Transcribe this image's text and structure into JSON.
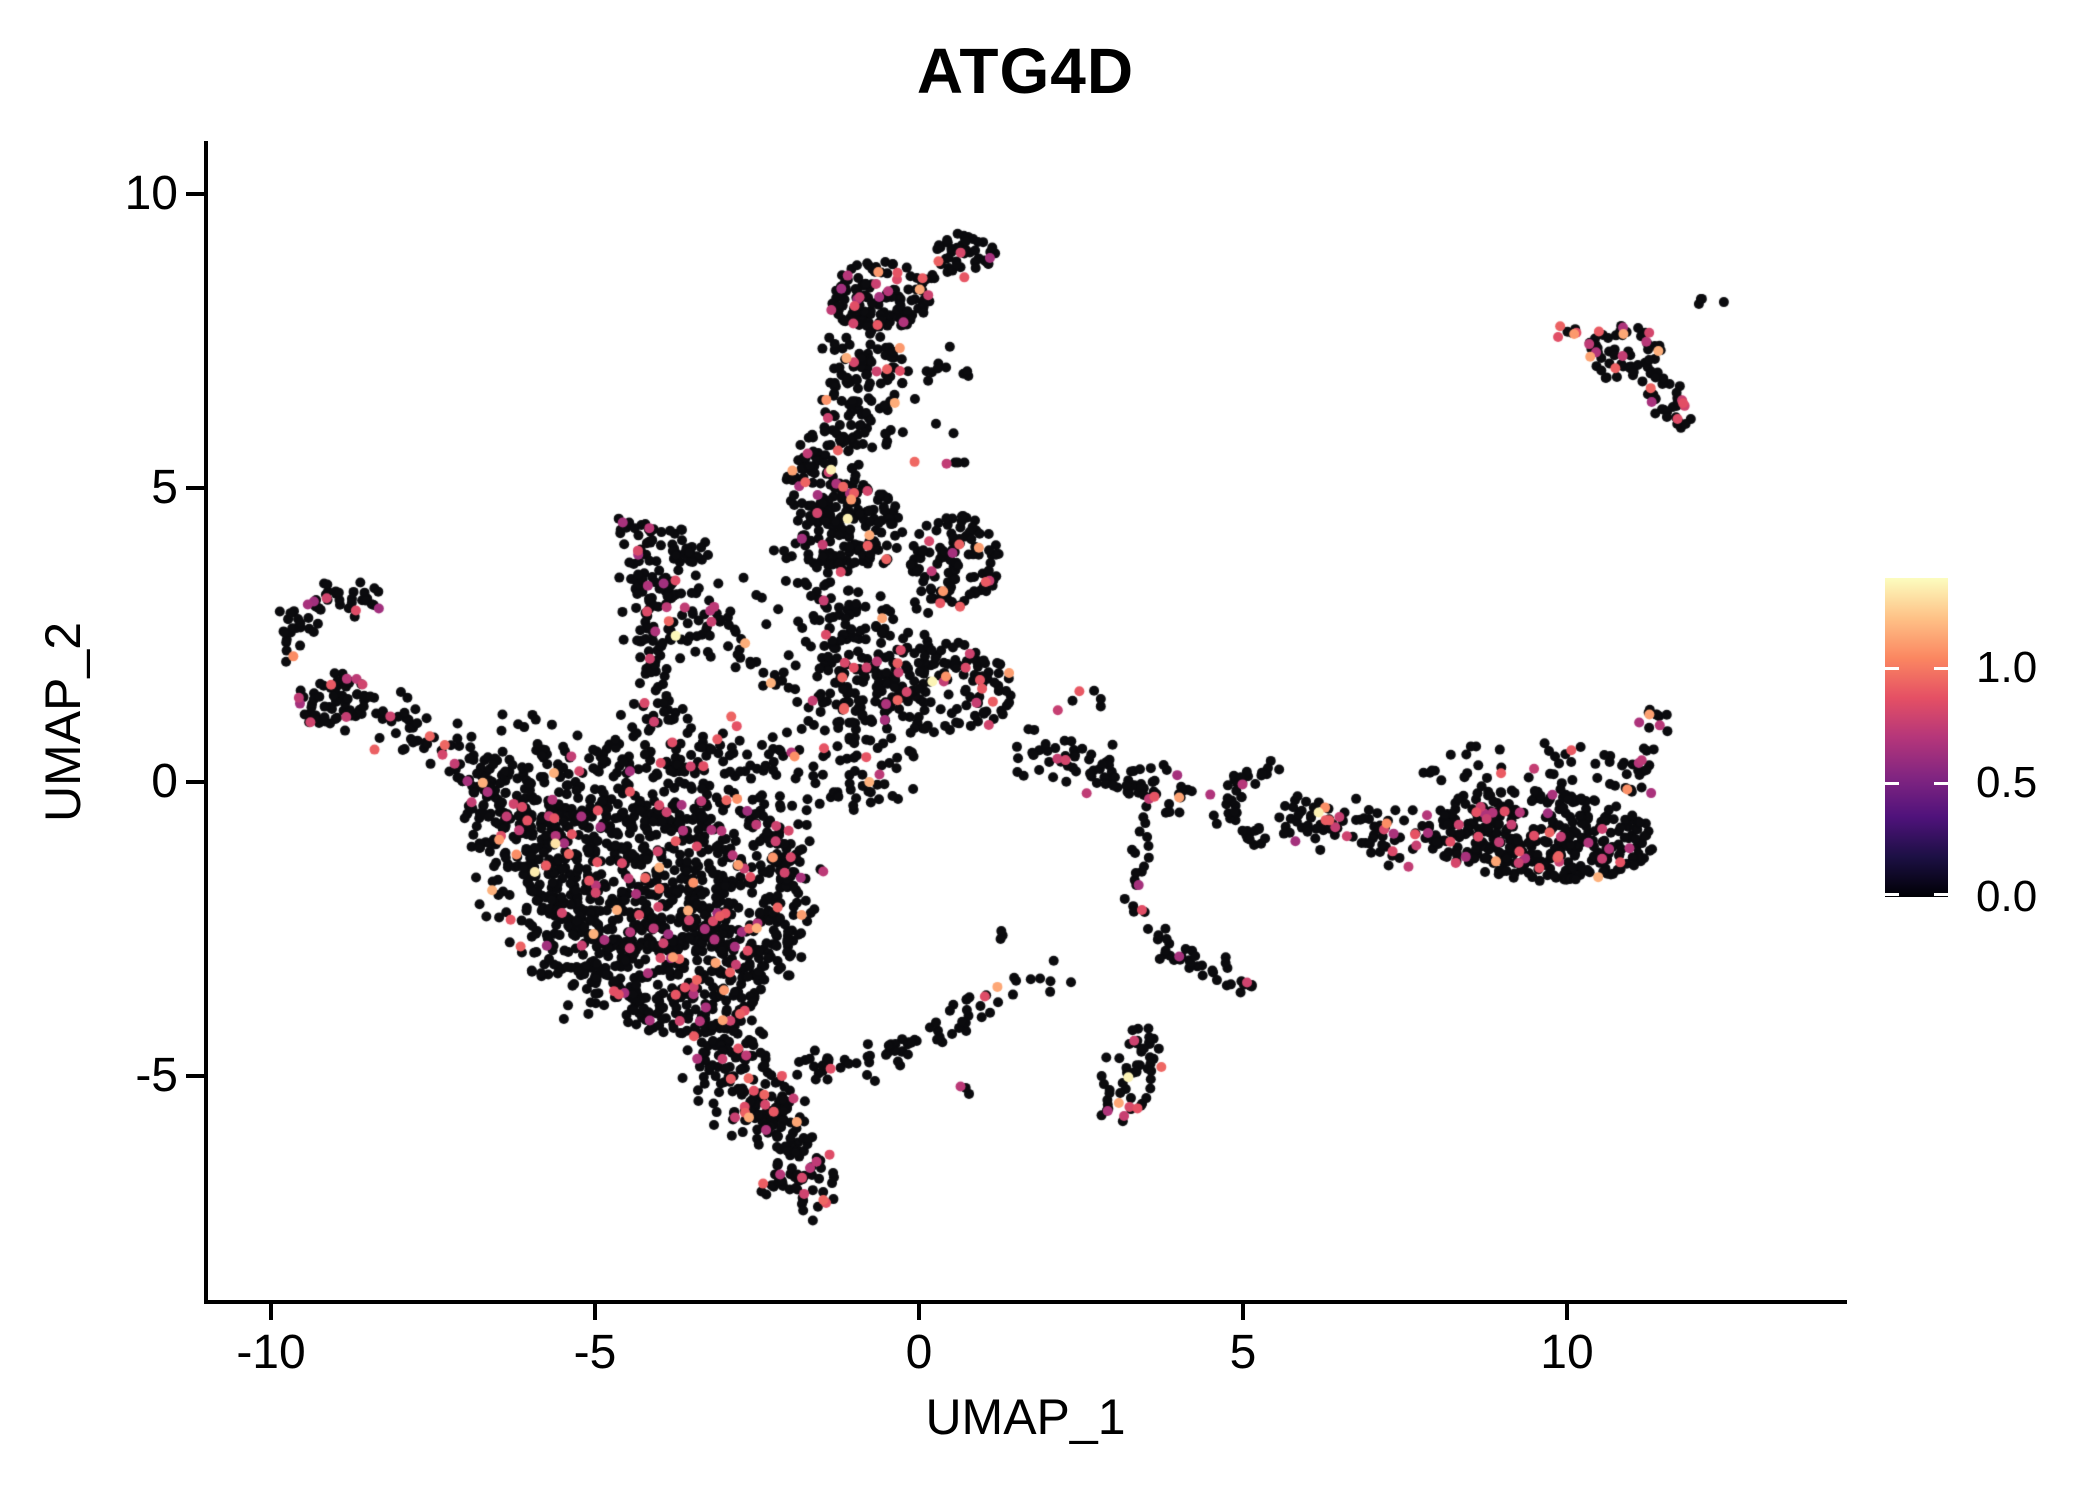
{
  "title": "ATG4D",
  "axes": {
    "x": {
      "label": "UMAP_1",
      "tick_labels": [
        "-10",
        "-5",
        "0",
        "5",
        "10"
      ],
      "tick_values": [
        -10,
        -5,
        0,
        5,
        10
      ]
    },
    "y": {
      "label": "UMAP_2",
      "tick_labels": [
        "10",
        "5",
        "0",
        "-5"
      ],
      "tick_values": [
        10,
        5,
        0,
        -5
      ]
    }
  },
  "legend": {
    "labels": [
      "1.0",
      "0.5",
      "0.0"
    ],
    "tick_values": [
      1.0,
      0.5,
      0.0
    ],
    "max_value": 1.39,
    "colormap": "magma",
    "stops": [
      "#000004",
      "#1c1044",
      "#4f127b",
      "#812581",
      "#b5367a",
      "#e55064",
      "#fb8761",
      "#fec287",
      "#fcfdbf"
    ]
  },
  "chart_data": {
    "type": "scatter",
    "title": "ATG4D",
    "xlabel": "UMAP_1",
    "ylabel": "UMAP_2",
    "xlim": [
      -11.0,
      14.3
    ],
    "ylim": [
      -8.8,
      10.9
    ],
    "x_ticks": [
      -10,
      -5,
      0,
      5,
      10
    ],
    "y_ticks": [
      -5,
      0,
      5,
      10
    ],
    "grid": false,
    "legend_position": "right",
    "n_points": 4245,
    "point_radius_px": 5,
    "data_x_range": [
      -10.6,
      12.4
    ],
    "data_y_range": [
      -7.45,
      9.4
    ],
    "color_scale": {
      "variable": "ATG4D expression",
      "range": [
        0.0,
        1.39
      ],
      "palette": "magma",
      "zero_fraction": 0.91,
      "point_color_groups": {
        "black_zero": "#0b0b0e",
        "magenta_mid": "#b5367a",
        "orange_high": "#fb9a62",
        "cream_max": "#fcf0b2"
      }
    },
    "clusters": [
      {
        "name": "stalk-head-top",
        "t": "e",
        "c": [
          0.72,
          8.95
        ],
        "r": [
          0.5,
          0.38
        ],
        "rot": -20,
        "n": 48,
        "cf": 0.1
      },
      {
        "name": "stalk-head-connector",
        "t": "p",
        "pts": [
          [
            0.0,
            8.55
          ],
          [
            0.38,
            8.75
          ]
        ],
        "w": 0.2,
        "n": 6,
        "cf": 0.05
      },
      {
        "name": "stalk-head",
        "t": "e",
        "c": [
          -0.62,
          8.25
        ],
        "r": [
          0.8,
          0.6
        ],
        "rot": 0,
        "n": 135,
        "cf": 0.09
      },
      {
        "name": "stalk-neck",
        "t": "p",
        "pts": [
          [
            -0.8,
            7.7
          ],
          [
            -0.95,
            6.6
          ],
          [
            -1.2,
            5.7
          ]
        ],
        "w": 0.6,
        "n": 105,
        "cf": 0.08
      },
      {
        "name": "stalk-left-bulge",
        "t": "e",
        "c": [
          -1.5,
          5.2
        ],
        "r": [
          0.55,
          0.85
        ],
        "rot": 0,
        "n": 80,
        "cf": 0.1
      },
      {
        "name": "stalk-mid",
        "t": "e",
        "c": [
          -1.1,
          4.3
        ],
        "r": [
          0.85,
          0.8
        ],
        "rot": 0,
        "n": 150,
        "cf": 0.08
      },
      {
        "name": "stalk-lower",
        "t": "p",
        "pts": [
          [
            -1.35,
            3.3
          ],
          [
            -1.1,
            2.1
          ],
          [
            -0.95,
            1.1
          ]
        ],
        "w": 0.8,
        "n": 150,
        "cf": 0.07
      },
      {
        "name": "stalk-right-sparse",
        "t": "e",
        "c": [
          -0.25,
          6.4
        ],
        "r": [
          0.55,
          1.1
        ],
        "rot": 0,
        "n": 22,
        "cf": 0.08
      },
      {
        "name": "above-b-sparse",
        "t": "e",
        "c": [
          0.45,
          6.6
        ],
        "r": [
          0.35,
          0.9
        ],
        "rot": 0,
        "n": 10,
        "cf": 0.1
      },
      {
        "name": "tiny-pair",
        "t": "e",
        "c": [
          0.55,
          5.42
        ],
        "r": [
          0.18,
          0.1
        ],
        "rot": 0,
        "n": 4,
        "cf": 0.3
      },
      {
        "name": "cluster-b",
        "t": "e",
        "c": [
          0.55,
          3.75
        ],
        "r": [
          0.7,
          0.8
        ],
        "rot": 0,
        "n": 115,
        "cf": 0.1
      },
      {
        "name": "cluster-c",
        "t": "e",
        "c": [
          0.4,
          1.6
        ],
        "r": [
          1.1,
          0.8
        ],
        "rot": -10,
        "n": 150,
        "cf": 0.12
      },
      {
        "name": "junction-scatter",
        "t": "e",
        "c": [
          -1.05,
          0.55
        ],
        "r": [
          1.25,
          1.05
        ],
        "rot": 0,
        "n": 85,
        "cf": 0.07
      },
      {
        "name": "gap-c-b",
        "t": "e",
        "c": [
          -0.15,
          2.7
        ],
        "r": [
          0.5,
          0.4
        ],
        "rot": 0,
        "n": 10,
        "cf": 0.08
      },
      {
        "name": "wing-top",
        "t": "p",
        "pts": [
          [
            -4.55,
            4.4
          ],
          [
            -3.35,
            3.7
          ]
        ],
        "w": 0.32,
        "n": 45,
        "cf": 0.08
      },
      {
        "name": "wing-hypotenuse",
        "t": "p",
        "pts": [
          [
            -4.35,
            4.0
          ],
          [
            -3.5,
            3.0
          ],
          [
            -2.7,
            2.25
          ]
        ],
        "w": 0.5,
        "n": 65,
        "cf": 0.08
      },
      {
        "name": "wing-left-edge",
        "t": "p",
        "pts": [
          [
            -4.4,
            3.6
          ],
          [
            -4.05,
            2.2
          ],
          [
            -3.95,
            1.0
          ]
        ],
        "w": 0.4,
        "n": 60,
        "cf": 0.08
      },
      {
        "name": "wing-interior",
        "t": "e",
        "c": [
          -3.7,
          2.8
        ],
        "r": [
          0.7,
          0.8
        ],
        "rot": 0,
        "n": 35,
        "cf": 0.06
      },
      {
        "name": "wing-stalk-connector",
        "t": "p",
        "pts": [
          [
            -2.6,
            2.1
          ],
          [
            -2.0,
            1.5
          ]
        ],
        "w": 0.3,
        "n": 12,
        "cf": 0.08
      },
      {
        "name": "wing-gap-sparse",
        "t": "e",
        "c": [
          -2.3,
          3.6
        ],
        "r": [
          0.45,
          0.5
        ],
        "rot": 0,
        "n": 8,
        "cf": 0.1
      },
      {
        "name": "arm-hook",
        "t": "p",
        "pts": [
          [
            -8.35,
            3.1
          ],
          [
            -9.15,
            3.2
          ],
          [
            -9.6,
            2.7
          ],
          [
            -9.75,
            2.1
          ]
        ],
        "w": 0.3,
        "n": 55,
        "cf": 0.09
      },
      {
        "name": "arm-elbow",
        "t": "e",
        "c": [
          -9.0,
          1.35
        ],
        "r": [
          0.6,
          0.5
        ],
        "rot": 0,
        "n": 70,
        "cf": 0.1
      },
      {
        "name": "arm",
        "t": "p",
        "pts": [
          [
            -8.4,
            1.15
          ],
          [
            -7.2,
            0.5
          ],
          [
            -6.2,
            -0.3
          ],
          [
            -5.5,
            -0.9
          ]
        ],
        "w": 0.48,
        "n": 115,
        "cf": 0.08
      },
      {
        "name": "arm-above-sparse",
        "t": "e",
        "c": [
          -6.3,
          1.0
        ],
        "r": [
          0.5,
          0.25
        ],
        "rot": 0,
        "n": 6,
        "cf": 0.1
      },
      {
        "name": "blob-top-band",
        "t": "p",
        "pts": [
          [
            -6.7,
            -0.4
          ],
          [
            -5.2,
            0.15
          ],
          [
            -3.4,
            0.3
          ],
          [
            -2.3,
            -0.1
          ]
        ],
        "w": 0.85,
        "n": 270,
        "cf": 0.07
      },
      {
        "name": "blob-core",
        "t": "e",
        "c": [
          -4.35,
          -1.6
        ],
        "r": [
          1.7,
          1.35
        ],
        "rot": 0,
        "n": 500,
        "cf": 0.085
      },
      {
        "name": "blob-left-edge",
        "t": "p",
        "pts": [
          [
            -6.55,
            -0.6
          ],
          [
            -5.8,
            -2.1
          ],
          [
            -4.95,
            -3.5
          ]
        ],
        "w": 0.75,
        "n": 190,
        "cf": 0.08
      },
      {
        "name": "blob-lower",
        "t": "e",
        "c": [
          -3.6,
          -3.3
        ],
        "r": [
          1.25,
          1.05
        ],
        "rot": 0,
        "n": 290,
        "cf": 0.085
      },
      {
        "name": "blob-tip",
        "t": "p",
        "pts": [
          [
            -3.2,
            -4.3
          ],
          [
            -2.7,
            -5.1
          ],
          [
            -2.35,
            -5.7
          ]
        ],
        "w": 0.7,
        "n": 130,
        "cf": 0.09
      },
      {
        "name": "blob-right-edge",
        "t": "p",
        "pts": [
          [
            -2.35,
            -0.6
          ],
          [
            -2.05,
            -2.0
          ],
          [
            -2.4,
            -3.1
          ]
        ],
        "w": 0.6,
        "n": 170,
        "cf": 0.08
      },
      {
        "name": "blob-halo",
        "t": "e",
        "c": [
          -4.3,
          -1.8
        ],
        "r": [
          2.5,
          2.3
        ],
        "rot": 0,
        "n": 70,
        "cf": 0.06
      },
      {
        "name": "tail",
        "t": "p",
        "pts": [
          [
            -2.25,
            -5.5
          ],
          [
            -1.95,
            -6.4
          ],
          [
            -1.8,
            -7.25
          ]
        ],
        "w": 0.52,
        "n": 105,
        "cf": 0.12
      },
      {
        "name": "tail-offshoot",
        "t": "p",
        "pts": [
          [
            -1.7,
            -4.6
          ],
          [
            -1.15,
            -5.0
          ]
        ],
        "w": 0.28,
        "n": 18,
        "cf": 0.1
      },
      {
        "name": "bottom-chain",
        "t": "p",
        "pts": [
          [
            -0.95,
            -4.85
          ],
          [
            0.15,
            -4.3
          ],
          [
            1.3,
            -3.6
          ],
          [
            2.25,
            -3.3
          ]
        ],
        "w": 0.3,
        "n": 60,
        "cf": 0.08
      },
      {
        "name": "bottom-pair",
        "t": "e",
        "c": [
          0.72,
          -5.2
        ],
        "r": [
          0.22,
          0.12
        ],
        "rot": 0,
        "n": 3,
        "cf": 0.34
      },
      {
        "name": "right-vchain",
        "t": "p",
        "pts": [
          [
            3.45,
            -0.7
          ],
          [
            3.3,
            -1.9
          ],
          [
            3.85,
            -2.85
          ],
          [
            4.85,
            -3.3
          ]
        ],
        "w": 0.28,
        "n": 50,
        "cf": 0.1
      },
      {
        "name": "vchain-clump",
        "t": "e",
        "c": [
          4.95,
          -3.42
        ],
        "r": [
          0.2,
          0.16
        ],
        "rot": 0,
        "n": 8,
        "cf": 0.28
      },
      {
        "name": "south-island",
        "t": "e",
        "c": [
          3.25,
          -4.95
        ],
        "r": [
          0.45,
          0.9
        ],
        "rot": -20,
        "n": 55,
        "cf": 0.14
      },
      {
        "name": "band-left-chain",
        "t": "p",
        "pts": [
          [
            1.6,
            0.55
          ],
          [
            2.6,
            0.3
          ],
          [
            3.5,
            -0.1
          ],
          [
            4.3,
            -0.4
          ]
        ],
        "w": 0.42,
        "n": 90,
        "cf": 0.11
      },
      {
        "name": "band-ring",
        "t": "r",
        "c": [
          5.3,
          -0.4
        ],
        "rad": 0.55,
        "w": 0.22,
        "n": 55,
        "cf": 0.08
      },
      {
        "name": "band-mid",
        "t": "p",
        "pts": [
          [
            5.9,
            -0.55
          ],
          [
            6.9,
            -0.85
          ],
          [
            7.7,
            -1.0
          ]
        ],
        "w": 0.45,
        "n": 75,
        "cf": 0.1
      },
      {
        "name": "band-dense",
        "t": "e",
        "c": [
          9.55,
          -0.9
        ],
        "r": [
          1.8,
          0.78
        ],
        "rot": -4,
        "n": 380,
        "cf": 0.11
      },
      {
        "name": "band-arm-up",
        "t": "p",
        "pts": [
          [
            10.95,
            -0.25
          ],
          [
            11.15,
            0.55
          ],
          [
            11.3,
            1.3
          ]
        ],
        "w": 0.3,
        "n": 32,
        "cf": 0.18
      },
      {
        "name": "band-top-scatter",
        "t": "e",
        "c": [
          9.3,
          0.25
        ],
        "r": [
          1.7,
          0.45
        ],
        "rot": 0,
        "n": 38,
        "cf": 0.1
      },
      {
        "name": "band-left-pair",
        "t": "e",
        "c": [
          1.4,
          -2.6
        ],
        "r": [
          0.25,
          0.12
        ],
        "rot": 0,
        "n": 3,
        "cf": 0.0
      },
      {
        "name": "mid-right-sparse",
        "t": "e",
        "c": [
          2.6,
          1.5
        ],
        "r": [
          0.8,
          0.35
        ],
        "rot": 0,
        "n": 6,
        "cf": 0.1
      },
      {
        "name": "ne-island",
        "t": "e",
        "c": [
          10.85,
          7.3
        ],
        "r": [
          0.6,
          0.5
        ],
        "rot": 0,
        "n": 55,
        "cf": 0.18
      },
      {
        "name": "ne-island-arm",
        "t": "p",
        "pts": [
          [
            11.0,
            7.05
          ],
          [
            11.55,
            6.5
          ],
          [
            11.9,
            6.1
          ]
        ],
        "w": 0.3,
        "n": 40,
        "cf": 0.22
      },
      {
        "name": "ne-island-left-chain",
        "t": "p",
        "pts": [
          [
            9.75,
            7.75
          ],
          [
            10.3,
            7.6
          ]
        ],
        "w": 0.14,
        "n": 7,
        "cf": 0.15
      },
      {
        "name": "ne-island-pair",
        "t": "e",
        "c": [
          12.2,
          8.2
        ],
        "r": [
          0.24,
          0.14
        ],
        "rot": 0,
        "n": 4,
        "cf": 0.25
      }
    ]
  }
}
